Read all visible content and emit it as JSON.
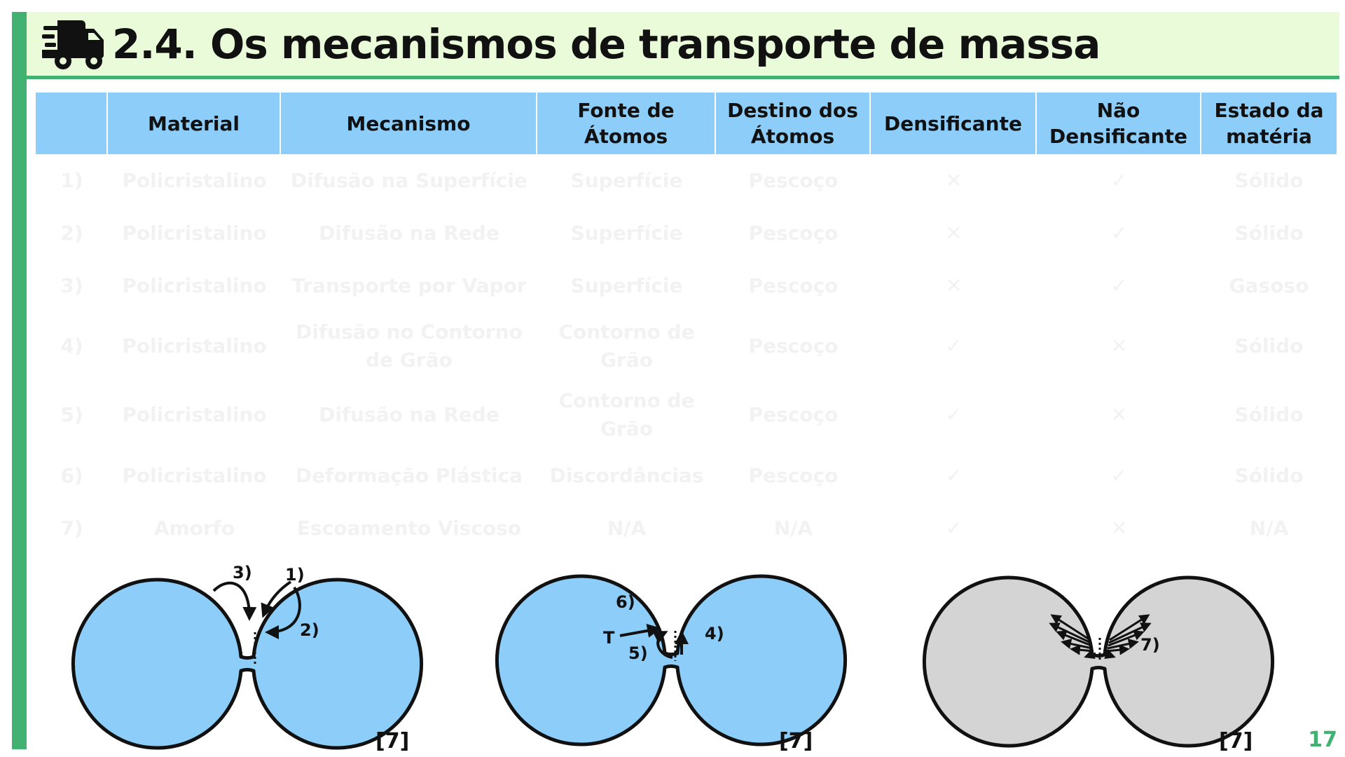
{
  "header": {
    "icon": "truck-fast-icon",
    "title": "2.4. Os mecanismos de transporte de massa"
  },
  "colors": {
    "accent": "#41b271",
    "header_bg": "#e9fbd8",
    "table_header_bg": "#8ccdf9",
    "particle_blue": "#8ccdf9",
    "particle_gray": "#d4d4d4"
  },
  "table": {
    "columns": [
      "",
      "Material",
      "Mecanismo",
      "Fonte de Átomos",
      "Destino dos Átomos",
      "Densificante",
      "Não Densificante",
      "Estado da matéria"
    ],
    "rows": [
      [
        "1)",
        "Policristalino",
        "Difusão na Superfície",
        "Superfície",
        "Pescoço",
        "✕",
        "✓",
        "Sólido"
      ],
      [
        "2)",
        "Policristalino",
        "Difusão na Rede",
        "Superfície",
        "Pescoço",
        "✕",
        "✓",
        "Sólido"
      ],
      [
        "3)",
        "Policristalino",
        "Transporte por Vapor",
        "Superfície",
        "Pescoço",
        "✕",
        "✓",
        "Gasoso"
      ],
      [
        "4)",
        "Policristalino",
        "Difusão no Contorno de Grão",
        "Contorno de Grão",
        "Pescoço",
        "✓",
        "✕",
        "Sólido"
      ],
      [
        "5)",
        "Policristalino",
        "Difusão na Rede",
        "Contorno de Grão",
        "Pescoço",
        "✓",
        "✕",
        "Sólido"
      ],
      [
        "6)",
        "Policristalino",
        "Deformação Plástica",
        "Discordâncias",
        "Pescoço",
        "✓",
        "✓",
        "Sólido"
      ],
      [
        "7)",
        "Amorfo",
        "Escoamento Viscoso",
        "N/A",
        "N/A",
        "✓",
        "✕",
        "N/A"
      ]
    ]
  },
  "diagrams": {
    "left": {
      "labels": [
        "3)",
        "1)",
        "2)"
      ],
      "reference": "[7]"
    },
    "middle": {
      "labels": [
        "6)",
        "T",
        "5)",
        "4)"
      ],
      "reference": "[7]"
    },
    "right": {
      "labels": [
        "7)"
      ],
      "reference": "[7]"
    }
  },
  "page_number": "17"
}
